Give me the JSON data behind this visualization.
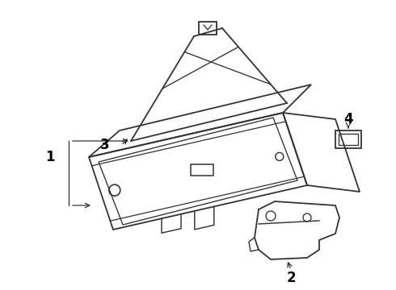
{
  "background_color": "#ffffff",
  "line_color": "#333333",
  "line_width": 1.3,
  "label_color": "#000000",
  "figsize": [
    4.9,
    3.6
  ],
  "dpi": 100,
  "label1": "1",
  "label2": "2",
  "label3": "3",
  "label4": "4"
}
